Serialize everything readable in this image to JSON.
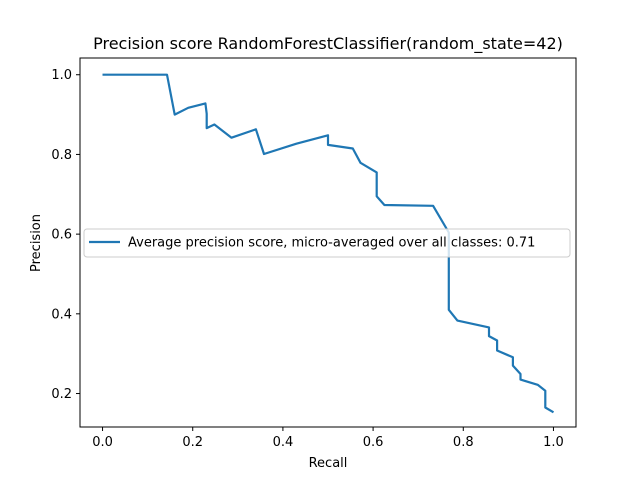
{
  "chart_data": {
    "type": "line",
    "title": "Precision score RandomForestClassifier(random_state=42)",
    "xlabel": "Recall",
    "ylabel": "Precision",
    "xlim": [
      -0.05,
      1.05
    ],
    "ylim": [
      0.116,
      1.042
    ],
    "xticks": [
      0.0,
      0.2,
      0.4,
      0.6,
      0.8,
      1.0
    ],
    "xtick_labels": [
      "0.0",
      "0.2",
      "0.4",
      "0.6",
      "0.8",
      "1.0"
    ],
    "yticks": [
      0.2,
      0.4,
      0.6,
      0.8,
      1.0
    ],
    "ytick_labels": [
      "0.2",
      "0.4",
      "0.6",
      "0.8",
      "1.0"
    ],
    "grid": false,
    "legend_position": "center-right",
    "series": [
      {
        "name": "Average precision score, micro-averaged over all classes: 0.71",
        "color": "#1f77b4",
        "x": [
          0.0,
          0.143,
          0.16,
          0.19,
          0.228,
          0.231,
          0.231,
          0.248,
          0.286,
          0.34,
          0.358,
          0.43,
          0.5,
          0.5,
          0.555,
          0.572,
          0.608,
          0.608,
          0.625,
          0.733,
          0.768,
          0.768,
          0.787,
          0.857,
          0.857,
          0.875,
          0.875,
          0.91,
          0.91,
          0.927,
          0.927,
          0.965,
          0.982,
          0.982,
          1.0
        ],
        "y": [
          1.0,
          1.0,
          0.9,
          0.917,
          0.928,
          0.902,
          0.866,
          0.875,
          0.842,
          0.863,
          0.801,
          0.827,
          0.848,
          0.824,
          0.815,
          0.779,
          0.755,
          0.695,
          0.673,
          0.671,
          0.604,
          0.41,
          0.383,
          0.366,
          0.344,
          0.333,
          0.308,
          0.291,
          0.27,
          0.249,
          0.235,
          0.222,
          0.207,
          0.165,
          0.153
        ]
      }
    ]
  }
}
